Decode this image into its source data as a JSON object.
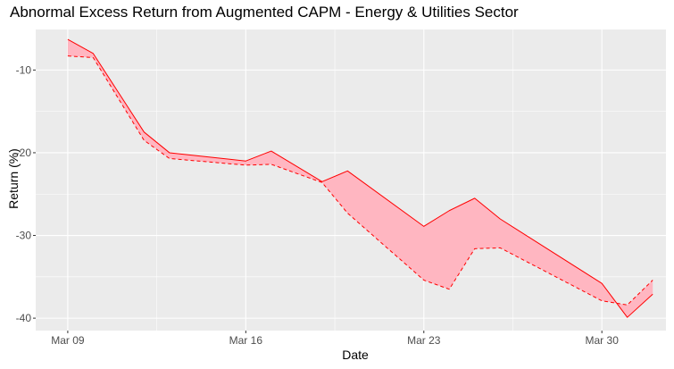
{
  "chart_data": {
    "type": "area",
    "title": "Abnormal Excess Return from Augmented CAPM - Energy & Utilities Sector",
    "xlabel": "Date",
    "ylabel": "Return (%)",
    "x_tick_labels": [
      "Mar 09",
      "Mar 16",
      "Mar 23",
      "Mar 30"
    ],
    "y_tick_labels": [
      "-10",
      "-20",
      "-30",
      "-40"
    ],
    "x_ticks_day": [
      0,
      7,
      14,
      21
    ],
    "y_ticks": [
      -10,
      -20,
      -30,
      -40
    ],
    "xlim_day": [
      -1.26,
      23.52
    ],
    "ylim": [
      -41.5,
      -5.1
    ],
    "x": [
      0,
      1,
      3,
      4,
      7,
      8,
      10,
      11,
      14,
      15,
      16,
      17,
      21,
      22,
      23
    ],
    "series": [
      {
        "style": "solid",
        "color": "#ff0000",
        "values": [
          -6.3,
          -8.0,
          -17.5,
          -20.0,
          -21.0,
          -19.8,
          -23.5,
          -22.2,
          -28.9,
          -27.0,
          -25.5,
          -28.0,
          -35.8,
          -39.9,
          -37.1
        ]
      },
      {
        "style": "dashed",
        "color": "#ff0000",
        "values": [
          -8.3,
          -8.5,
          -18.5,
          -20.7,
          -21.5,
          -21.4,
          -23.6,
          -27.3,
          -35.4,
          -36.5,
          -31.6,
          -31.5,
          -37.9,
          -38.4,
          -35.4
        ]
      }
    ],
    "fill_color": "#ffb6c1",
    "panel_color": "#ebebeb",
    "grid": true,
    "legend": "none"
  }
}
